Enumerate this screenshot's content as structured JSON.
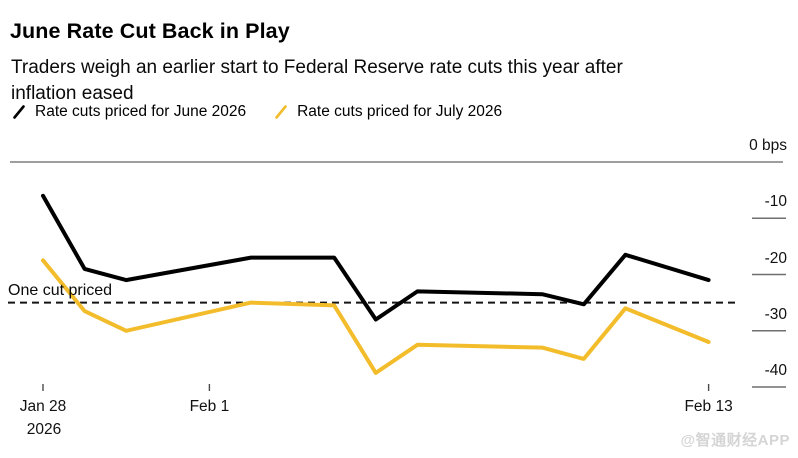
{
  "header": {
    "title": "June Rate Cut Back in Play",
    "subtitle_line1": "Traders weigh an earlier start to Federal Reserve rate cuts this year after",
    "subtitle_line2": "inflation eased"
  },
  "legend": [
    {
      "label": "Rate cuts priced for June 2026",
      "color": "#000000"
    },
    {
      "label": "Rate cuts priced for July 2026",
      "color": "#F2BC2B"
    }
  ],
  "chart_data": {
    "type": "line",
    "unit": "bps",
    "y_axis": {
      "top_label": "0 bps",
      "ticks": [
        -10,
        -20,
        -30,
        -40
      ],
      "range": [
        -45,
        0
      ],
      "side": "right"
    },
    "x_axis": {
      "tick_labels": [
        {
          "label": "Jan 28",
          "sublabel": "2026",
          "day": 0
        },
        {
          "label": "Feb 1",
          "day": 4
        },
        {
          "label": "Feb 13",
          "day": 16
        }
      ],
      "range_days": [
        0,
        16
      ]
    },
    "annotation": {
      "label": "One cut priced",
      "value": -25
    },
    "series": [
      {
        "name": "Rate cuts priced for June 2026",
        "color": "#000000",
        "dates": [
          "Jan 28",
          "Jan 29",
          "Jan 30",
          "Feb 2",
          "Feb 4",
          "Feb 5",
          "Feb 6",
          "Feb 9",
          "Feb 10",
          "Feb 11",
          "Feb 13"
        ],
        "days": [
          0,
          1,
          2,
          5,
          7,
          8,
          9,
          12,
          13,
          14,
          16
        ],
        "values": [
          -6,
          -19,
          -21,
          -17,
          -17,
          -28,
          -23,
          -23.5,
          -25.3,
          -16.5,
          -21
        ]
      },
      {
        "name": "Rate cuts priced for July 2026",
        "color": "#F2BC2B",
        "dates": [
          "Jan 28",
          "Jan 29",
          "Jan 30",
          "Feb 2",
          "Feb 4",
          "Feb 5",
          "Feb 6",
          "Feb 9",
          "Feb 10",
          "Feb 11",
          "Feb 13"
        ],
        "days": [
          0,
          1,
          2,
          5,
          7,
          8,
          9,
          12,
          13,
          14,
          16
        ],
        "values": [
          -17.5,
          -26.5,
          -30,
          -25,
          -25.5,
          -37.5,
          -32.5,
          -33,
          -35,
          -26,
          -32
        ]
      }
    ],
    "grid": false,
    "legend_position": "top"
  },
  "watermark": "@智通财经APP"
}
